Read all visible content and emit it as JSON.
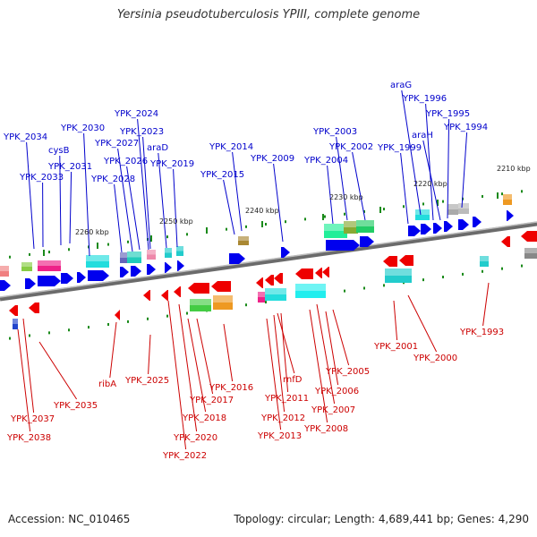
{
  "title": "Yersinia pseudotuberculosis YPIII, complete genome",
  "footer": {
    "accession": "Accession: NC_010465",
    "summary": "Topology: circular; Length: 4,689,441 bp; Genes: 4,290"
  },
  "colors": {
    "forward_label": "#0000cc",
    "reverse_label": "#cc0000",
    "forward_gene": "#0000ee",
    "reverse_gene": "#ee0000",
    "backbone": "#888888",
    "tick": "#1a8a1a"
  },
  "kbp_ticks": [
    "2210 kbp",
    "2220 kbp",
    "2230 kbp",
    "2240 kbp",
    "2250 kbp",
    "2260 kbp"
  ],
  "forward_genes": [
    "YPK_2034",
    "YPK_2033",
    "cysB",
    "YPK_2031",
    "YPK_2030",
    "YPK_2028",
    "YPK_2027",
    "YPK_2026",
    "YPK_2024",
    "YPK_2023",
    "araD",
    "YPK_2019",
    "YPK_2015",
    "YPK_2014",
    "YPK_2009",
    "YPK_2004",
    "YPK_2003",
    "YPK_2002",
    "YPK_1999",
    "araG",
    "YPK_1996",
    "araH",
    "YPK_1995",
    "YPK_1994"
  ],
  "reverse_genes": [
    "YPK_2038",
    "YPK_2037",
    "YPK_2035",
    "ribA",
    "YPK_2025",
    "YPK_2022",
    "YPK_2020",
    "YPK_2018",
    "YPK_2017",
    "YPK_2016",
    "YPK_2013",
    "YPK_2012",
    "YPK_2011",
    "rnfD",
    "YPK_2008",
    "YPK_2007",
    "YPK_2006",
    "YPK_2005",
    "YPK_2001",
    "YPK_2000",
    "YPK_1993"
  ]
}
